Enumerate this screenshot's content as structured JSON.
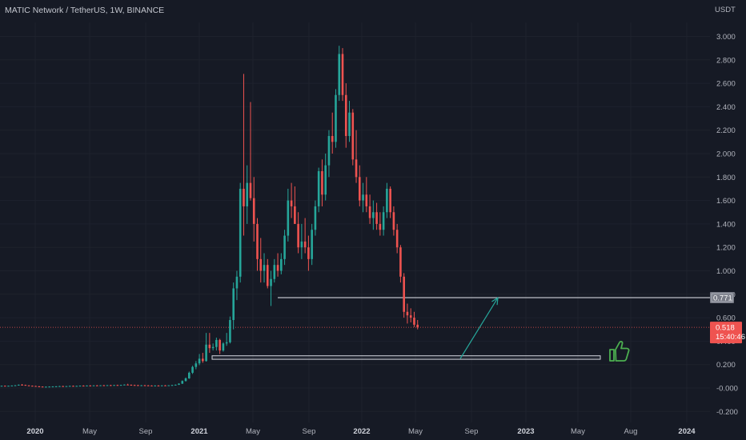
{
  "header": {
    "title": "MATIC Network / TetherUS, 1W, BINANCE"
  },
  "colors": {
    "background": "#161a25",
    "up": "#26a69a",
    "down": "#ef5350",
    "line": "#d1d4dc",
    "thumb": "#4caf50"
  },
  "chart_data": {
    "type": "candlestick",
    "currency_label": "USDT",
    "y_ticks": [
      "3.000",
      "2.800",
      "2.600",
      "2.400",
      "2.200",
      "2.000",
      "1.800",
      "1.600",
      "1.400",
      "1.200",
      "1.000",
      "0.800",
      "0.600",
      "0.400",
      "0.200",
      "-0.000",
      "-0.200"
    ],
    "ylim": [
      -0.25,
      3.15
    ],
    "x_ticks": [
      {
        "label": "2020",
        "bold": true
      },
      {
        "label": "May",
        "bold": false
      },
      {
        "label": "Sep",
        "bold": false
      },
      {
        "label": "2021",
        "bold": true
      },
      {
        "label": "May",
        "bold": false
      },
      {
        "label": "Sep",
        "bold": false
      },
      {
        "label": "2022",
        "bold": true
      },
      {
        "label": "May",
        "bold": false
      },
      {
        "label": "Sep",
        "bold": false
      },
      {
        "label": "2023",
        "bold": true
      },
      {
        "label": "May",
        "bold": false
      },
      {
        "label": "Aug",
        "bold": false
      },
      {
        "label": "2024",
        "bold": true
      }
    ],
    "last_price": "0.518",
    "countdown": "15:40:46",
    "resistance": {
      "value": 0.771,
      "label": "0.771"
    },
    "support_zone": {
      "low": 0.245,
      "high": 0.275
    },
    "arrow": {
      "from_value": 0.25,
      "to_value": 0.77
    },
    "candles": [
      [
        0.018,
        0.02,
        0.015,
        0.019
      ],
      [
        0.019,
        0.021,
        0.017,
        0.018
      ],
      [
        0.018,
        0.02,
        0.016,
        0.019
      ],
      [
        0.019,
        0.022,
        0.017,
        0.021
      ],
      [
        0.021,
        0.025,
        0.019,
        0.023
      ],
      [
        0.023,
        0.03,
        0.021,
        0.028
      ],
      [
        0.028,
        0.034,
        0.024,
        0.026
      ],
      [
        0.026,
        0.028,
        0.02,
        0.022
      ],
      [
        0.022,
        0.024,
        0.018,
        0.019
      ],
      [
        0.019,
        0.021,
        0.016,
        0.017
      ],
      [
        0.017,
        0.019,
        0.012,
        0.014
      ],
      [
        0.014,
        0.017,
        0.009,
        0.012
      ],
      [
        0.012,
        0.014,
        0.007,
        0.01
      ],
      [
        0.01,
        0.013,
        0.008,
        0.011
      ],
      [
        0.011,
        0.014,
        0.009,
        0.012
      ],
      [
        0.012,
        0.015,
        0.01,
        0.013
      ],
      [
        0.013,
        0.016,
        0.011,
        0.014
      ],
      [
        0.014,
        0.018,
        0.012,
        0.016
      ],
      [
        0.016,
        0.019,
        0.014,
        0.015
      ],
      [
        0.015,
        0.017,
        0.013,
        0.016
      ],
      [
        0.016,
        0.019,
        0.014,
        0.018
      ],
      [
        0.018,
        0.021,
        0.016,
        0.017
      ],
      [
        0.017,
        0.019,
        0.015,
        0.018
      ],
      [
        0.018,
        0.021,
        0.016,
        0.02
      ],
      [
        0.02,
        0.023,
        0.018,
        0.019
      ],
      [
        0.019,
        0.022,
        0.017,
        0.021
      ],
      [
        0.021,
        0.024,
        0.019,
        0.02
      ],
      [
        0.02,
        0.023,
        0.018,
        0.022
      ],
      [
        0.022,
        0.025,
        0.02,
        0.021
      ],
      [
        0.021,
        0.024,
        0.019,
        0.023
      ],
      [
        0.023,
        0.026,
        0.021,
        0.022
      ],
      [
        0.022,
        0.025,
        0.02,
        0.024
      ],
      [
        0.024,
        0.027,
        0.022,
        0.023
      ],
      [
        0.023,
        0.026,
        0.021,
        0.025
      ],
      [
        0.025,
        0.028,
        0.023,
        0.024
      ],
      [
        0.024,
        0.027,
        0.022,
        0.026
      ],
      [
        0.026,
        0.031,
        0.024,
        0.029
      ],
      [
        0.029,
        0.036,
        0.026,
        0.027
      ],
      [
        0.027,
        0.03,
        0.023,
        0.025
      ],
      [
        0.025,
        0.028,
        0.022,
        0.024
      ],
      [
        0.024,
        0.027,
        0.021,
        0.022
      ],
      [
        0.022,
        0.025,
        0.02,
        0.023
      ],
      [
        0.023,
        0.026,
        0.021,
        0.022
      ],
      [
        0.022,
        0.025,
        0.02,
        0.021
      ],
      [
        0.021,
        0.023,
        0.019,
        0.02
      ],
      [
        0.02,
        0.023,
        0.018,
        0.021
      ],
      [
        0.021,
        0.024,
        0.019,
        0.02
      ],
      [
        0.02,
        0.023,
        0.018,
        0.022
      ],
      [
        0.022,
        0.025,
        0.02,
        0.021
      ],
      [
        0.021,
        0.024,
        0.019,
        0.023
      ],
      [
        0.023,
        0.027,
        0.021,
        0.025
      ],
      [
        0.025,
        0.03,
        0.023,
        0.028
      ],
      [
        0.028,
        0.04,
        0.026,
        0.037
      ],
      [
        0.037,
        0.065,
        0.035,
        0.06
      ],
      [
        0.06,
        0.09,
        0.055,
        0.082
      ],
      [
        0.082,
        0.14,
        0.078,
        0.13
      ],
      [
        0.13,
        0.19,
        0.12,
        0.18
      ],
      [
        0.18,
        0.23,
        0.16,
        0.21
      ],
      [
        0.21,
        0.29,
        0.195,
        0.25
      ],
      [
        0.25,
        0.3,
        0.215,
        0.23
      ],
      [
        0.23,
        0.47,
        0.225,
        0.37
      ],
      [
        0.37,
        0.47,
        0.3,
        0.34
      ],
      [
        0.34,
        0.38,
        0.32,
        0.35
      ],
      [
        0.35,
        0.43,
        0.32,
        0.41
      ],
      [
        0.41,
        0.42,
        0.29,
        0.32
      ],
      [
        0.32,
        0.39,
        0.31,
        0.38
      ],
      [
        0.38,
        0.47,
        0.36,
        0.39
      ],
      [
        0.39,
        0.61,
        0.38,
        0.58
      ],
      [
        0.58,
        0.9,
        0.5,
        0.85
      ],
      [
        0.85,
        1.0,
        0.75,
        0.95
      ],
      [
        0.95,
        1.75,
        0.9,
        1.7
      ],
      [
        1.7,
        2.68,
        1.3,
        1.55
      ],
      [
        1.55,
        1.9,
        1.4,
        1.75
      ],
      [
        1.75,
        2.44,
        1.6,
        1.62
      ],
      [
        1.62,
        1.8,
        1.25,
        1.4
      ],
      [
        1.4,
        1.45,
        1.0,
        1.1
      ],
      [
        1.1,
        1.28,
        0.9,
        1.0
      ],
      [
        1.0,
        1.15,
        0.9,
        1.05
      ],
      [
        1.05,
        1.1,
        0.85,
        0.87
      ],
      [
        0.87,
        1.0,
        0.7,
        0.93
      ],
      [
        0.93,
        1.1,
        0.9,
        1.05
      ],
      [
        1.05,
        1.15,
        0.95,
        1.0
      ],
      [
        1.0,
        1.15,
        0.97,
        1.1
      ],
      [
        1.1,
        1.35,
        1.05,
        1.3
      ],
      [
        1.3,
        1.7,
        1.25,
        1.6
      ],
      [
        1.6,
        1.75,
        1.45,
        1.55
      ],
      [
        1.55,
        1.72,
        1.4,
        1.4
      ],
      [
        1.4,
        1.5,
        1.15,
        1.2
      ],
      [
        1.2,
        1.4,
        1.1,
        1.25
      ],
      [
        1.25,
        1.45,
        1.15,
        1.2
      ],
      [
        1.2,
        1.3,
        1.0,
        1.1
      ],
      [
        1.1,
        1.4,
        1.05,
        1.35
      ],
      [
        1.35,
        1.6,
        1.3,
        1.55
      ],
      [
        1.55,
        1.88,
        1.5,
        1.85
      ],
      [
        1.85,
        1.95,
        1.55,
        1.65
      ],
      [
        1.65,
        2.0,
        1.6,
        1.9
      ],
      [
        1.9,
        2.2,
        1.8,
        2.15
      ],
      [
        2.15,
        2.35,
        2.0,
        2.1
      ],
      [
        2.1,
        2.55,
        2.05,
        2.5
      ],
      [
        2.5,
        2.92,
        2.45,
        2.85
      ],
      [
        2.85,
        2.9,
        2.45,
        2.5
      ],
      [
        2.5,
        2.6,
        2.05,
        2.15
      ],
      [
        2.15,
        2.45,
        2.1,
        2.35
      ],
      [
        2.35,
        2.38,
        1.9,
        1.95
      ],
      [
        1.95,
        2.2,
        1.75,
        1.8
      ],
      [
        1.8,
        1.9,
        1.55,
        1.6
      ],
      [
        1.6,
        1.75,
        1.5,
        1.65
      ],
      [
        1.65,
        1.8,
        1.5,
        1.55
      ],
      [
        1.55,
        1.65,
        1.4,
        1.45
      ],
      [
        1.45,
        1.6,
        1.35,
        1.5
      ],
      [
        1.5,
        1.58,
        1.35,
        1.4
      ],
      [
        1.4,
        1.5,
        1.3,
        1.35
      ],
      [
        1.35,
        1.55,
        1.3,
        1.5
      ],
      [
        1.5,
        1.75,
        1.45,
        1.7
      ],
      [
        1.7,
        1.72,
        1.45,
        1.5
      ],
      [
        1.5,
        1.55,
        1.3,
        1.35
      ],
      [
        1.35,
        1.4,
        1.15,
        1.2
      ],
      [
        1.2,
        1.22,
        0.9,
        0.95
      ],
      [
        0.95,
        0.98,
        0.6,
        0.65
      ],
      [
        0.65,
        0.72,
        0.55,
        0.62
      ],
      [
        0.62,
        0.68,
        0.56,
        0.6
      ],
      [
        0.6,
        0.65,
        0.52,
        0.54
      ],
      [
        0.54,
        0.58,
        0.5,
        0.518
      ]
    ]
  }
}
